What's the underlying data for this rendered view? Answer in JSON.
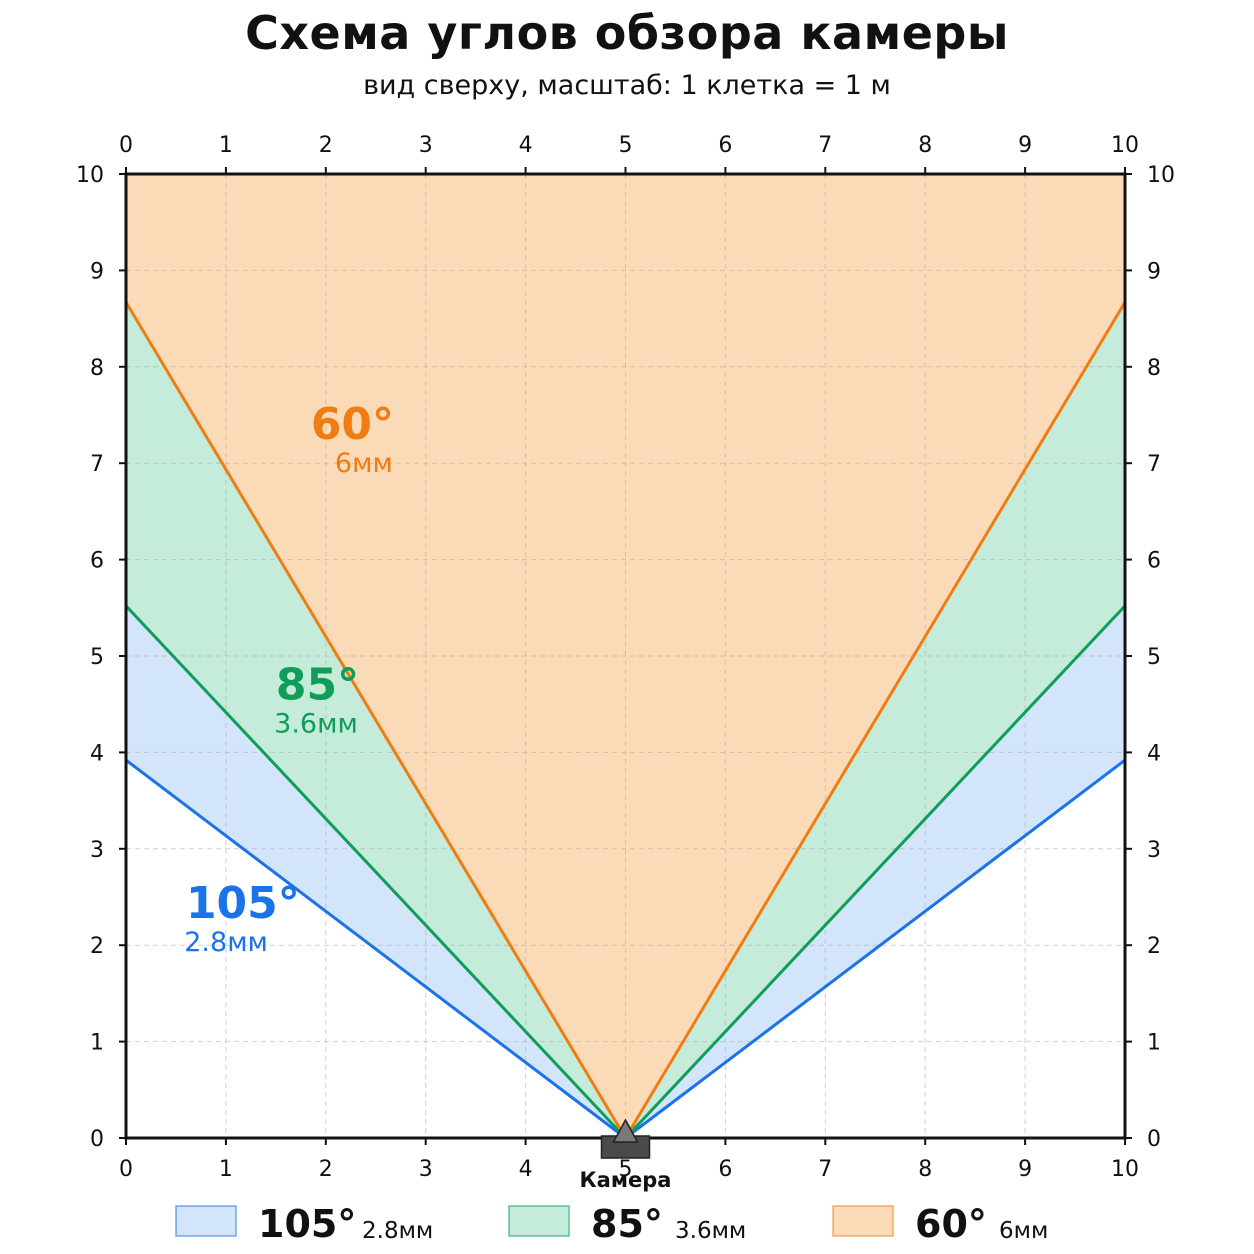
{
  "title": "Схема углов обзора камеры",
  "subtitle": "вид сверху, масштаб: 1 клетка = 1 м",
  "colors": {
    "blue": "#1a73e8",
    "blue_fill": "#d3e5fb",
    "green": "#0f9d58",
    "green_fill": "#c5ecda",
    "orange": "#ef7d13",
    "orange_fill": "#fbdbb7",
    "camera": "#4a4a4a"
  },
  "chart_data": {
    "type": "area",
    "title": "Схема углов обзора камеры",
    "subtitle": "вид сверху, масштаб: 1 клетка = 1 м",
    "xlim": [
      0,
      10
    ],
    "ylim": [
      0,
      10
    ],
    "xticks": [
      0,
      1,
      2,
      3,
      4,
      5,
      6,
      7,
      8,
      9,
      10
    ],
    "yticks": [
      0,
      1,
      2,
      3,
      4,
      5,
      6,
      7,
      8,
      9,
      10
    ],
    "grid": true,
    "camera": {
      "x": 5,
      "y": 0,
      "label": "Камера"
    },
    "series": [
      {
        "name": "105°",
        "angle_deg": 105,
        "lens": "2.8мм",
        "color_key": "blue",
        "edges": [
          {
            "x": [
              5,
              0
            ],
            "y": [
              0,
              3.92
            ]
          },
          {
            "x": [
              5,
              10
            ],
            "y": [
              0,
              3.92
            ]
          }
        ]
      },
      {
        "name": "85°",
        "angle_deg": 85,
        "lens": "3.6мм",
        "color_key": "green",
        "edges": [
          {
            "x": [
              5,
              0
            ],
            "y": [
              0,
              5.52
            ]
          },
          {
            "x": [
              5,
              10
            ],
            "y": [
              0,
              5.52
            ]
          }
        ]
      },
      {
        "name": "60°",
        "angle_deg": 60,
        "lens": "6мм",
        "color_key": "orange",
        "edges": [
          {
            "x": [
              5,
              0
            ],
            "y": [
              0,
              8.67
            ]
          },
          {
            "x": [
              5,
              10
            ],
            "y": [
              0,
              8.67
            ]
          }
        ]
      }
    ],
    "annotations": [
      {
        "series": "60°",
        "big": "60°",
        "small": "6мм",
        "at": {
          "x": 1.85,
          "y": 7.25
        }
      },
      {
        "series": "85°",
        "big": "85°",
        "small": "3.6мм",
        "at": {
          "x": 1.5,
          "y": 4.55
        }
      },
      {
        "series": "105°",
        "big": "105°",
        "small": "2.8мм",
        "at": {
          "x": 0.6,
          "y": 2.28
        }
      }
    ],
    "legend": {
      "placement": "bottom",
      "items": [
        {
          "big": "105°",
          "small": "2.8мм",
          "color_key": "blue"
        },
        {
          "big": "85°",
          "small": "3.6мм",
          "color_key": "green"
        },
        {
          "big": "60°",
          "small": "6мм",
          "color_key": "orange"
        }
      ]
    }
  }
}
